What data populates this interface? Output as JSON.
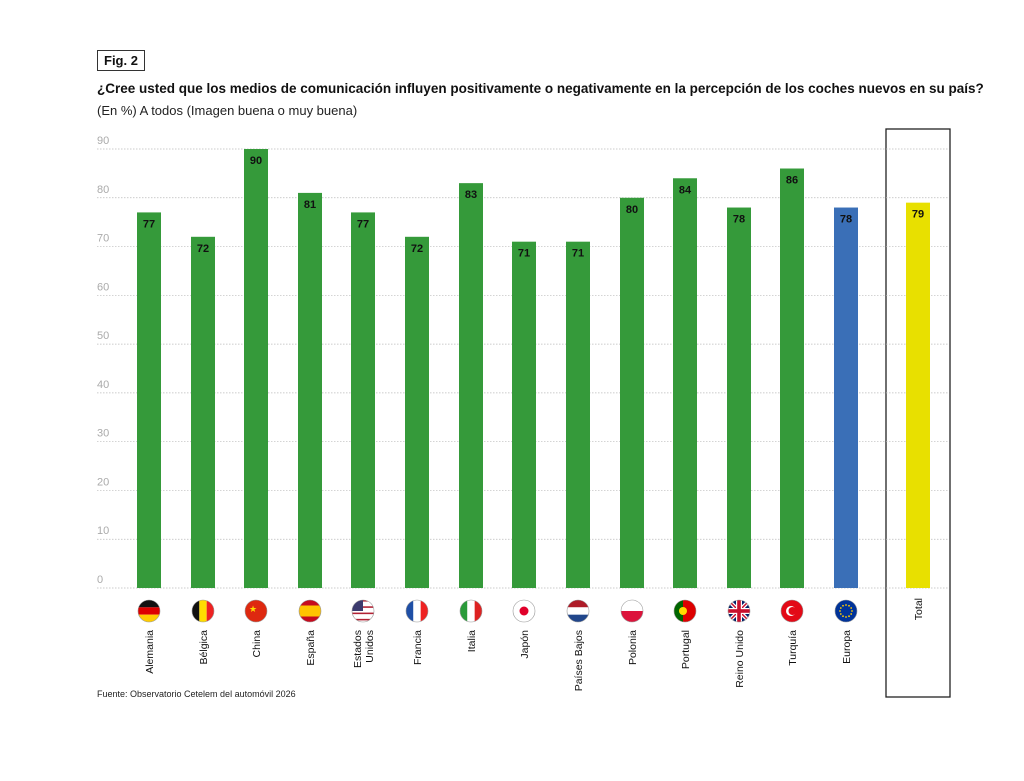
{
  "figure_label": "Fig. 2",
  "source": "Fuente: Observatorio Cetelem del automóvil 2026",
  "chart_data": {
    "type": "bar",
    "title": "¿Cree usted que los medios de comunicación influyen positivamente o negativamente en la percepción de los coches nuevos en su país?",
    "subtitle": "(En %) A todos (Imagen buena o muy buena)",
    "categories": [
      "Alemania",
      "Bélgica",
      "China",
      "España",
      "Estados Unidos",
      "Francia",
      "Italia",
      "Japón",
      "Países Bajos",
      "Polonia",
      "Portugal",
      "Reino Unido",
      "Turquía",
      "Europa",
      "Total"
    ],
    "values": [
      77,
      72,
      90,
      81,
      77,
      72,
      83,
      71,
      71,
      80,
      84,
      78,
      86,
      78,
      79
    ],
    "colors": [
      "#359a3a",
      "#359a3a",
      "#359a3a",
      "#359a3a",
      "#359a3a",
      "#359a3a",
      "#359a3a",
      "#359a3a",
      "#359a3a",
      "#359a3a",
      "#359a3a",
      "#359a3a",
      "#359a3a",
      "#3a6fb7",
      "#e8e000"
    ],
    "flags": [
      "de",
      "be",
      "cn",
      "es",
      "us",
      "fr",
      "it",
      "jp",
      "nl",
      "pl",
      "pt",
      "gb",
      "tr",
      "eu",
      ""
    ],
    "yticks": [
      0,
      10,
      20,
      30,
      40,
      50,
      60,
      70,
      80,
      90
    ],
    "ylim": [
      0,
      90
    ],
    "grid": true,
    "xlabel": "",
    "ylabel": ""
  }
}
